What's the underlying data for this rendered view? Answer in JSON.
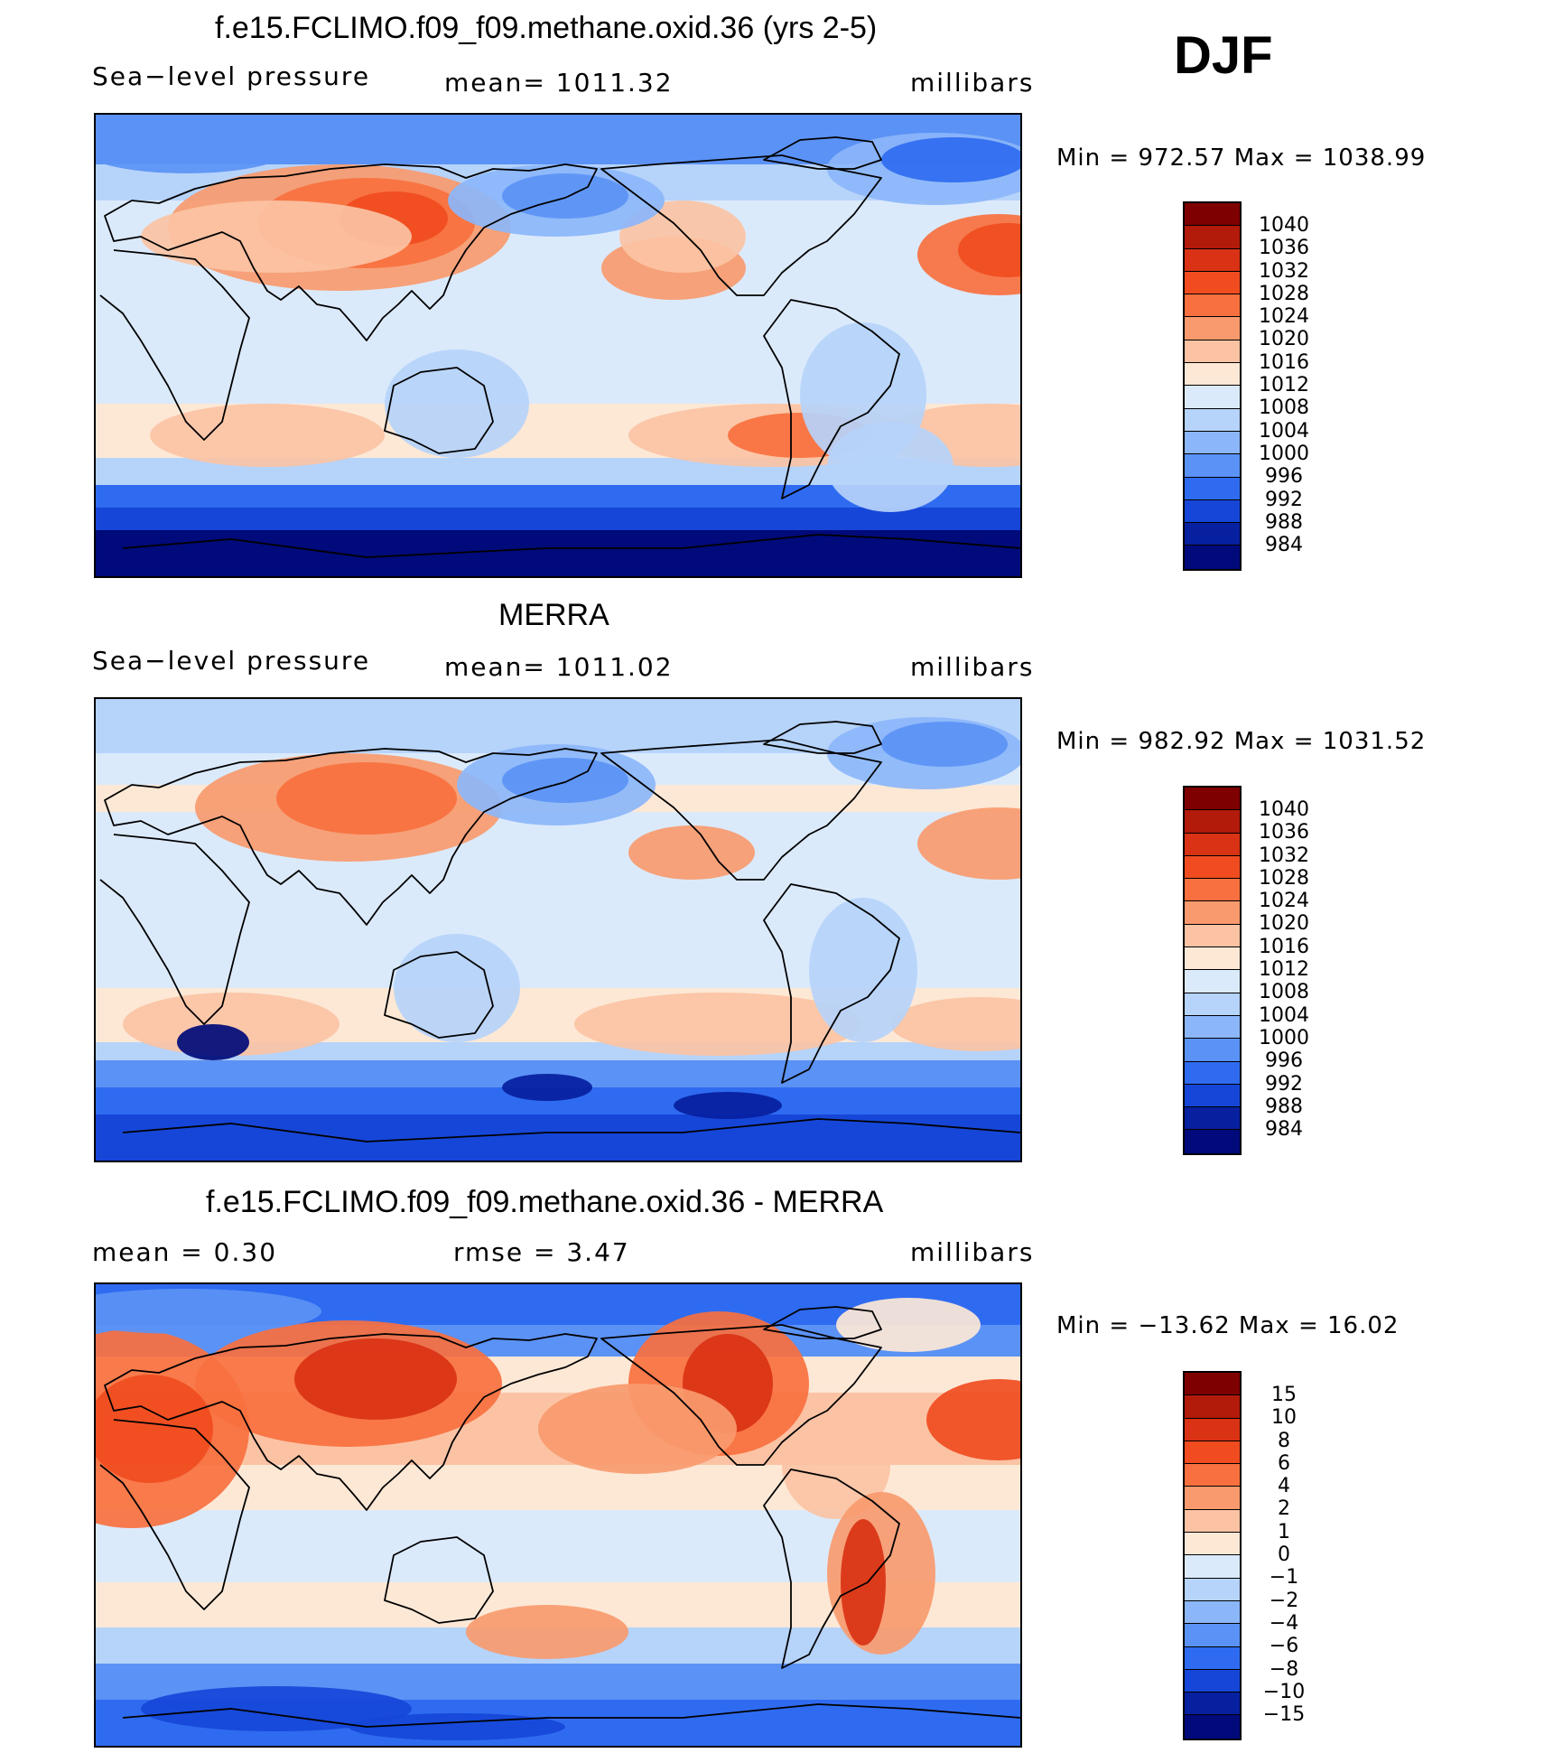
{
  "season": "DJF",
  "units": "millibars",
  "panels": [
    {
      "title": "f.e15.FCLIMO.f09_f09.methane.oxid.36 (yrs 2-5)",
      "left_label": "Sea−level pressure",
      "center_label": "mean=  1011.32",
      "right_label": "millibars",
      "minmax": "Min  =  972.57  Max  =  1038.99",
      "colorbar_levels": [
        "1040",
        "1036",
        "1032",
        "1028",
        "1024",
        "1020",
        "1016",
        "1012",
        "1008",
        "1004",
        "1000",
        "996",
        "992",
        "988",
        "984"
      ]
    },
    {
      "title": "MERRA",
      "left_label": "Sea−level pressure",
      "center_label": "mean=  1011.02",
      "right_label": "millibars",
      "minmax": "Min  =  982.92  Max  =  1031.52",
      "colorbar_levels": [
        "1040",
        "1036",
        "1032",
        "1028",
        "1024",
        "1020",
        "1016",
        "1012",
        "1008",
        "1004",
        "1000",
        "996",
        "992",
        "988",
        "984"
      ]
    },
    {
      "title": "f.e15.FCLIMO.f09_f09.methane.oxid.36 - MERRA",
      "left_label": "mean  =      0.30",
      "center_label": "rmse  =      3.47",
      "right_label": "millibars",
      "minmax": "Min  =  −13.62  Max  =     16.02",
      "colorbar_levels": [
        "15",
        "10",
        "8",
        "6",
        "4",
        "2",
        "1",
        "0",
        "−1",
        "−2",
        "−4",
        "−6",
        "−8",
        "−10",
        "−15"
      ]
    }
  ],
  "colors": {
    "scale": [
      "#7f0000",
      "#b21a0a",
      "#d93214",
      "#f04c20",
      "#f8703f",
      "#f99a6e",
      "#fbc3a4",
      "#fde8d6",
      "#dbeafb",
      "#b6d3fa",
      "#8cb6fa",
      "#5b92f5",
      "#2f6bf0",
      "#1646d8",
      "#06209f",
      "#000a7a"
    ]
  }
}
